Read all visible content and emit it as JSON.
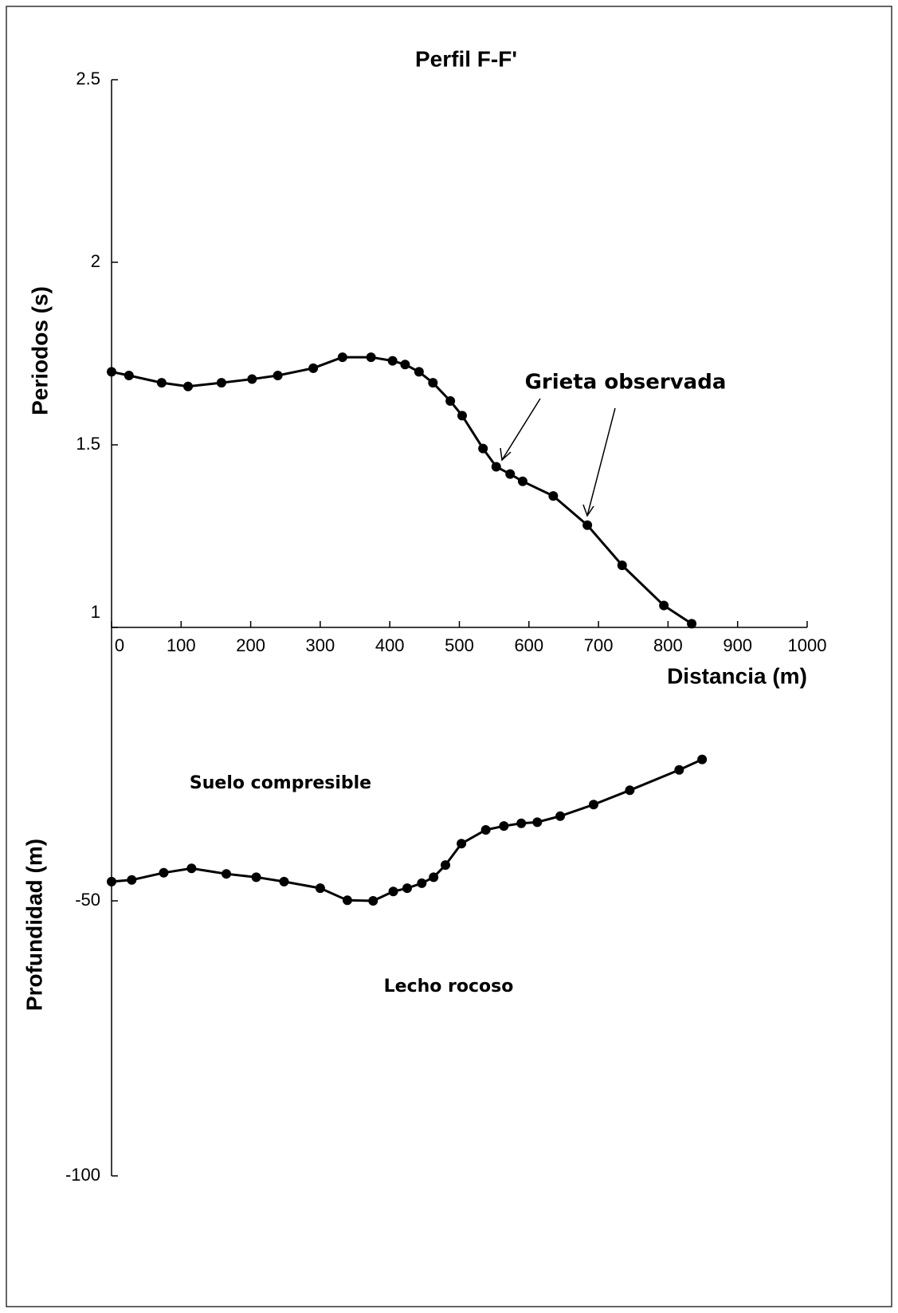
{
  "chart_data": [
    {
      "type": "line",
      "title": "Perfil F-F'",
      "ylabel": "Periodos (s)",
      "xlabel": "Distancia (m)",
      "x": [
        0,
        25,
        72,
        110,
        158,
        202,
        239,
        290,
        332,
        373,
        404,
        422,
        442,
        462,
        487,
        504,
        534,
        553,
        573,
        591,
        635,
        684,
        734,
        794,
        834
      ],
      "values": [
        1.7,
        1.69,
        1.67,
        1.66,
        1.67,
        1.68,
        1.69,
        1.71,
        1.74,
        1.74,
        1.73,
        1.72,
        1.7,
        1.67,
        1.62,
        1.58,
        1.49,
        1.44,
        1.42,
        1.4,
        1.36,
        1.28,
        1.17,
        1.06,
        1.01
      ],
      "color": "#000000",
      "xlim": [
        0,
        1000
      ],
      "xticks": [
        0,
        100,
        200,
        300,
        400,
        500,
        600,
        700,
        800,
        900,
        1000
      ],
      "ylim": [
        1,
        2.5
      ],
      "yticks": [
        1,
        1.5,
        2,
        2.5
      ],
      "annotations": [
        "Grieta observada"
      ]
    },
    {
      "type": "line",
      "ylabel": "Profundidad (m)",
      "x": [
        0,
        29,
        75,
        115,
        165,
        208,
        248,
        300,
        339,
        376,
        405,
        425,
        446,
        463,
        480,
        503,
        538,
        564,
        589,
        612,
        645,
        693,
        745,
        816,
        849
      ],
      "values": [
        -46.5,
        -46.2,
        -44.9,
        -44.1,
        -45.1,
        -45.7,
        -46.5,
        -47.7,
        -49.9,
        -50.0,
        -48.3,
        -47.7,
        -46.8,
        -45.7,
        -43.5,
        -39.6,
        -37.1,
        -36.4,
        -35.9,
        -35.7,
        -34.6,
        -32.5,
        -29.9,
        -26.2,
        -24.3
      ],
      "color": "#000000",
      "xlim": [
        0,
        1000
      ],
      "ylim": [
        -100,
        0
      ],
      "yticks": [
        -50,
        -100
      ],
      "annotations": [
        "Suelo compresible",
        "Lecho rocoso"
      ]
    }
  ]
}
